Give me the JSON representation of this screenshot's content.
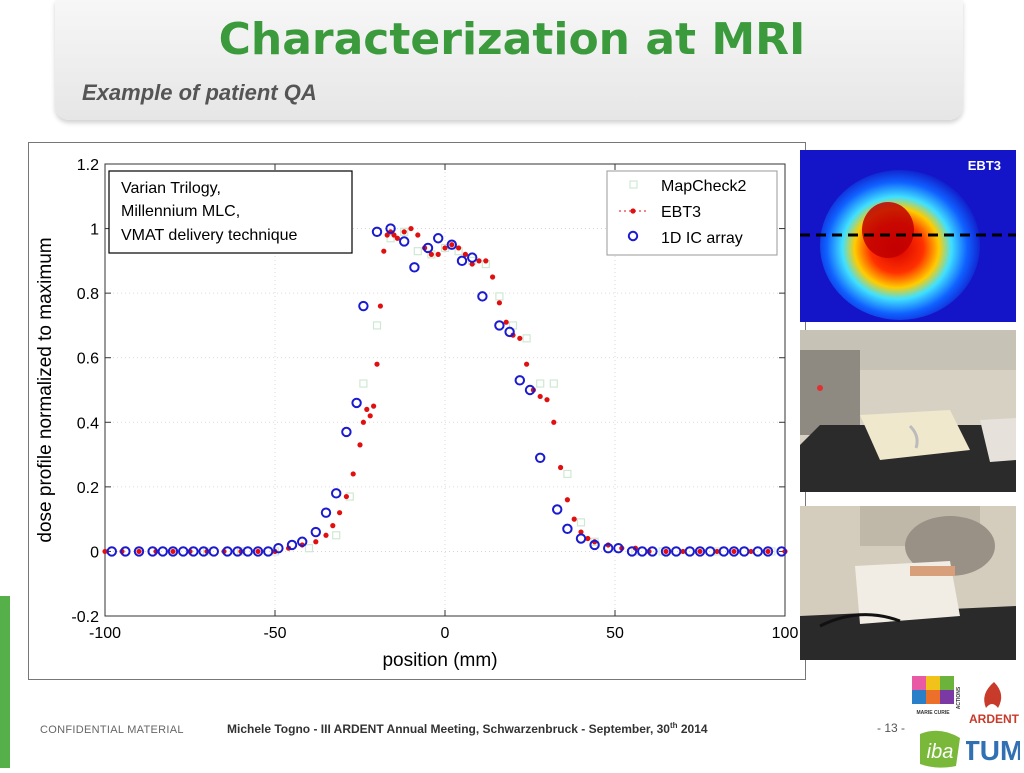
{
  "slide": {
    "title": "Characterization at MRI",
    "subtitle": "Example of patient QA"
  },
  "chart_data": {
    "type": "scatter",
    "xlabel": "position (mm)",
    "ylabel": "dose profile normalized to maximum",
    "xlim": [
      -100,
      100
    ],
    "ylim": [
      -0.2,
      1.2
    ],
    "xticks": [
      "-100",
      "-50",
      "0",
      "50",
      "100"
    ],
    "yticks": [
      "-0.2",
      "0",
      "0.2",
      "0.4",
      "0.6",
      "0.8",
      "1",
      "1.2"
    ],
    "grid": true,
    "legend_position": "top-right",
    "annotation": [
      "Varian Trilogy,",
      "Millennium MLC,",
      "VMAT delivery technique"
    ],
    "series": [
      {
        "name": "MapCheck2",
        "marker": "square",
        "color": "#cfe8d4",
        "x": [
          -90,
          -80,
          -70,
          -60,
          -50,
          -40,
          -32,
          -28,
          -24,
          -20,
          -16,
          -12,
          -8,
          -4,
          0,
          4,
          8,
          12,
          16,
          20,
          24,
          28,
          32,
          36,
          40,
          44,
          48,
          56,
          64,
          72,
          80,
          88,
          96
        ],
        "y": [
          0,
          0,
          0,
          0,
          0,
          0.01,
          0.05,
          0.17,
          0.52,
          0.7,
          0.97,
          0.99,
          0.93,
          0.92,
          0.94,
          0.93,
          0.9,
          0.89,
          0.79,
          0.7,
          0.66,
          0.52,
          0.52,
          0.24,
          0.09,
          0.03,
          0.01,
          0,
          0,
          0,
          0,
          0,
          0
        ]
      },
      {
        "name": "EBT3",
        "marker": "dot",
        "color": "#e01010",
        "x": [
          -100,
          -95,
          -90,
          -85,
          -80,
          -75,
          -70,
          -65,
          -60,
          -55,
          -50,
          -46,
          -42,
          -38,
          -35,
          -33,
          -31,
          -29,
          -27,
          -25,
          -24,
          -23,
          -22,
          -21,
          -20,
          -19,
          -18,
          -17,
          -16,
          -15,
          -14,
          -12,
          -10,
          -8,
          -6,
          -4,
          -2,
          0,
          2,
          4,
          6,
          8,
          10,
          12,
          14,
          16,
          18,
          20,
          22,
          24,
          26,
          28,
          30,
          32,
          34,
          36,
          38,
          40,
          42,
          44,
          48,
          52,
          56,
          60,
          65,
          70,
          75,
          80,
          85,
          90,
          95,
          100
        ],
        "y": [
          0,
          0,
          0,
          0,
          0,
          0,
          0,
          0,
          0,
          0,
          0,
          0.01,
          0.02,
          0.03,
          0.05,
          0.08,
          0.12,
          0.17,
          0.24,
          0.33,
          0.4,
          0.44,
          0.42,
          0.45,
          0.58,
          0.76,
          0.93,
          0.98,
          0.99,
          0.98,
          0.97,
          0.99,
          1.0,
          0.98,
          0.94,
          0.92,
          0.92,
          0.94,
          0.95,
          0.94,
          0.92,
          0.89,
          0.9,
          0.9,
          0.85,
          0.77,
          0.71,
          0.67,
          0.66,
          0.58,
          0.5,
          0.48,
          0.47,
          0.4,
          0.26,
          0.16,
          0.1,
          0.06,
          0.04,
          0.03,
          0.02,
          0.01,
          0.01,
          0,
          0,
          0,
          0,
          0,
          0,
          0,
          0,
          0
        ]
      },
      {
        "name": "1D IC array",
        "marker": "circle",
        "color": "#1a1ad0",
        "x": [
          -98,
          -94,
          -90,
          -86,
          -83,
          -80,
          -77,
          -74,
          -71,
          -68,
          -64,
          -61,
          -58,
          -55,
          -52,
          -49,
          -45,
          -42,
          -38,
          -35,
          -32,
          -29,
          -26,
          -24,
          -20,
          -16,
          -12,
          -9,
          -5,
          -2,
          2,
          5,
          8,
          11,
          16,
          19,
          22,
          25,
          28,
          33,
          36,
          40,
          44,
          48,
          51,
          55,
          58,
          61,
          65,
          68,
          72,
          75,
          78,
          82,
          85,
          88,
          92,
          95,
          99
        ],
        "y": [
          0,
          0,
          0,
          0,
          0,
          0,
          0,
          0,
          0,
          0,
          0,
          0,
          0,
          0,
          0,
          0.01,
          0.02,
          0.03,
          0.06,
          0.12,
          0.18,
          0.37,
          0.46,
          0.76,
          0.99,
          1.0,
          0.96,
          0.88,
          0.94,
          0.97,
          0.95,
          0.9,
          0.91,
          0.79,
          0.7,
          0.68,
          0.53,
          0.5,
          0.29,
          0.13,
          0.07,
          0.04,
          0.02,
          0.01,
          0.01,
          0,
          0,
          0,
          0,
          0,
          0,
          0,
          0,
          0,
          0,
          0,
          0,
          0,
          0
        ]
      }
    ]
  },
  "photos": {
    "ebt3_label": "EBT3"
  },
  "footer": {
    "confidential": "CONFIDENTIAL MATERIAL",
    "author": "Michele Togno - III ARDENT Annual Meeting, Schwarzenbruck - September, 30",
    "author_sup": "th",
    "author_year": " 2014",
    "page": "- 13 -"
  },
  "logos": {
    "ardent": "ARDENT",
    "marie_curie": "MARIE CURIE",
    "actions": "ACTIONS",
    "iba": "iba",
    "tum": "TUM"
  }
}
